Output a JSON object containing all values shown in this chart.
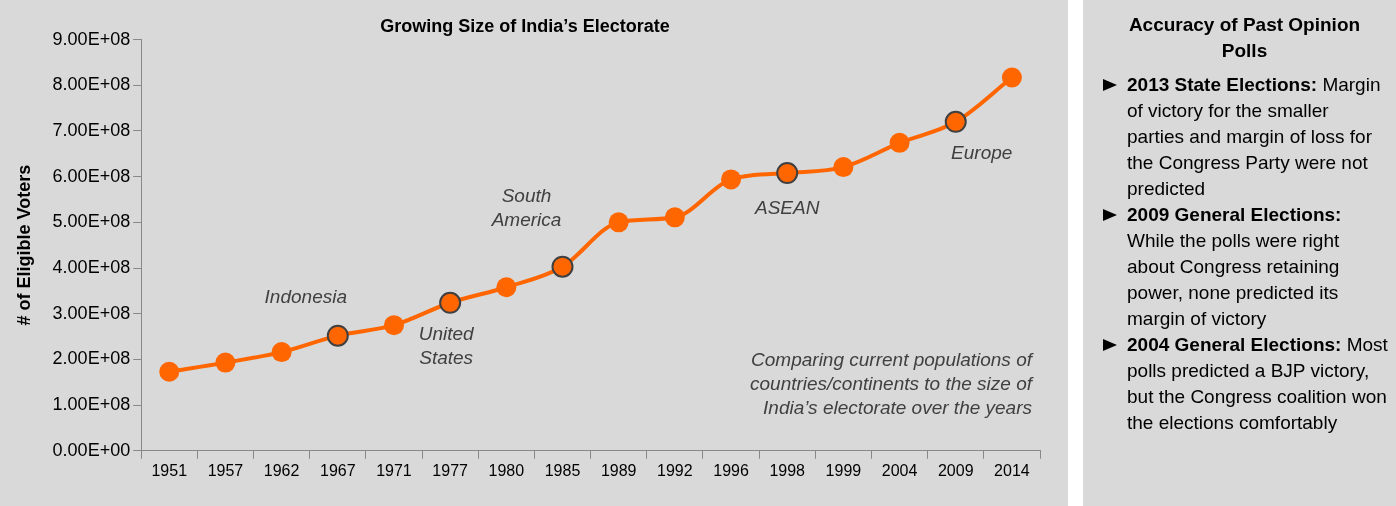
{
  "chart_data": [
    {
      "type": "line",
      "title": "Growing Size of India’s Electorate",
      "ylabel": "# of Eligible Voters",
      "categories": [
        "1951",
        "1957",
        "1962",
        "1967",
        "1971",
        "1977",
        "1980",
        "1985",
        "1989",
        "1992",
        "1996",
        "1998",
        "1999",
        "2004",
        "2009",
        "2014"
      ],
      "series": [
        {
          "color": "#ff6600",
          "values": [
            173000000,
            193000000,
            216000000,
            252000000,
            275000000,
            324000000,
            358000000,
            403000000,
            500000000,
            511000000,
            594000000,
            608000000,
            621000000,
            674000000,
            720000000,
            817000000
          ]
        }
      ],
      "ylim": [
        0,
        900000000
      ],
      "yticks": [
        {
          "value": 0,
          "label": "0.00E+00"
        },
        {
          "value": 100000000,
          "label": "1.00E+08"
        },
        {
          "value": 200000000,
          "label": "2.00E+08"
        },
        {
          "value": 300000000,
          "label": "3.00E+08"
        },
        {
          "value": 400000000,
          "label": "4.00E+08"
        },
        {
          "value": 500000000,
          "label": "5.00E+08"
        },
        {
          "value": 600000000,
          "label": "6.00E+08"
        },
        {
          "value": 700000000,
          "label": "7.00E+08"
        },
        {
          "value": 800000000,
          "label": "8.00E+08"
        },
        {
          "value": 900000000,
          "label": "9.00E+08"
        }
      ],
      "marker": "circle",
      "line_style": "solid",
      "grid": false,
      "legend": false,
      "annotations": [
        {
          "text": "Indonesia",
          "x": "1967",
          "y": 252000000
        },
        {
          "text": "United States",
          "x": "1977",
          "y": 324000000
        },
        {
          "text": "South America",
          "x": "1985",
          "y": 403000000
        },
        {
          "text": "ASEAN",
          "x": "1998",
          "y": 608000000
        },
        {
          "text": "Europe",
          "x": "2009",
          "y": 720000000
        },
        "Comparing current populations of countries/continents to the size of India’s electorate over the years"
      ]
    },
    {
      "type": "other",
      "title": "Accuracy of Past Opinion Polls",
      "annotations": [
        "2013 State Elections: Margin of victory for the smaller parties and margin of loss for the Congress Party were not predicted",
        "2009 General Elections: While the polls were right about Congress retaining power, none predicted its margin of victory",
        "2004 General Elections: Most polls predicted a BJP victory, but the Congress coalition won the elections comfortably"
      ]
    }
  ]
}
